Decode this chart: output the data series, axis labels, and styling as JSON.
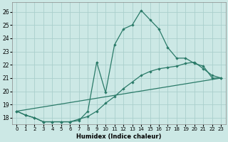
{
  "xlabel": "Humidex (Indice chaleur)",
  "xlim": [
    -0.5,
    23.5
  ],
  "ylim": [
    17.5,
    26.7
  ],
  "yticks": [
    18,
    19,
    20,
    21,
    22,
    23,
    24,
    25,
    26
  ],
  "xticks": [
    0,
    1,
    2,
    3,
    4,
    5,
    6,
    7,
    8,
    9,
    10,
    11,
    12,
    13,
    14,
    15,
    16,
    17,
    18,
    19,
    20,
    21,
    22,
    23
  ],
  "xtick_labels": [
    "0",
    "1",
    "2",
    "3",
    "4",
    "5",
    "6",
    "7",
    "8",
    "9",
    "10",
    "11",
    "12",
    "13",
    "14",
    "15",
    "16",
    "17",
    "18",
    "19",
    "20",
    "21",
    "22",
    "23"
  ],
  "background_color": "#cce8e5",
  "grid_color": "#aacfcc",
  "line_color": "#2a7a68",
  "line1_x": [
    0,
    1,
    2,
    3,
    4,
    5,
    6,
    7,
    8,
    9,
    10,
    11,
    12,
    13,
    14,
    15,
    16,
    17,
    18,
    19,
    20,
    21,
    22,
    23
  ],
  "line1_y": [
    18.5,
    18.2,
    18.0,
    17.7,
    17.7,
    17.7,
    17.7,
    17.8,
    18.5,
    22.2,
    19.9,
    23.5,
    24.7,
    25.0,
    26.1,
    25.4,
    24.7,
    23.3,
    22.5,
    22.5,
    22.1,
    21.9,
    21.0,
    21.0
  ],
  "line2_x": [
    0,
    1,
    2,
    3,
    4,
    5,
    6,
    7,
    8,
    9,
    10,
    11,
    12,
    13,
    14,
    15,
    16,
    17,
    18,
    19,
    20,
    21,
    22,
    23
  ],
  "line2_y": [
    18.5,
    18.2,
    18.0,
    17.7,
    17.7,
    17.7,
    17.7,
    17.9,
    18.1,
    18.5,
    19.1,
    19.6,
    20.2,
    20.7,
    21.2,
    21.5,
    21.7,
    21.8,
    21.9,
    22.1,
    22.2,
    21.7,
    21.2,
    21.0
  ],
  "line3_x": [
    0,
    23
  ],
  "line3_y": [
    18.5,
    21.0
  ]
}
